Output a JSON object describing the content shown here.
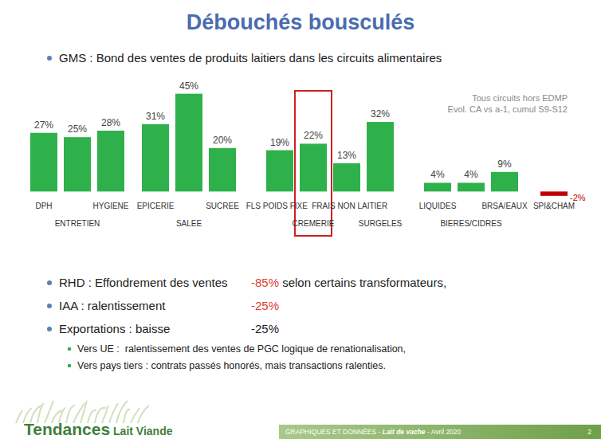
{
  "slide": {
    "title": "Débouchés bousculés",
    "bullets": [
      {
        "text": "RHD : Effondrement des ventes",
        "figure": "-85%",
        "figure_color": "#e03c31",
        "rest": " selon certains transformateurs,"
      },
      {
        "text": "IAA : ralentissement",
        "figure": "-25%",
        "figure_color": "#e03c31"
      },
      {
        "text": "Exportations : baisse",
        "figure": "-25%",
        "figure_color": "#222222"
      }
    ],
    "sub_bullets": [
      "Vers UE :  ralentissement des ventes de PGC logique de renationalisation,",
      "Vers pays tiers : contrats passés honorés, mais transactions ralenties."
    ],
    "footer": {
      "brand": "Tendances",
      "brand_sub": "Lait Viande",
      "source_parts": [
        "GRAPHIQUES ET DONNÉES - ",
        "Lait de vache",
        " - Avril 2020"
      ],
      "page": "2"
    }
  },
  "chart_data": {
    "type": "bar",
    "title": "GMS : Bond des ventes de produits laitiers dans les circuits alimentaires",
    "annotation": [
      "Tous circuits hors EDMP",
      "Evol. CA vs a-1, cumul S9-S12"
    ],
    "categories": [
      "DPH",
      null,
      "HYGIENE",
      "EPICERIE",
      null,
      "SUCREE",
      "FLS POIDS FIXE",
      null,
      "FRAIS NON LAITIER",
      null,
      "LIQUIDES",
      null,
      "BRSA/EAUX",
      "SPI&CHAM"
    ],
    "group_labels": [
      null,
      "ENTRETIEN",
      null,
      null,
      "SALEE",
      null,
      null,
      "CREMERIE",
      null,
      "SURGELES",
      null,
      "BIERES/CIDRES",
      null,
      null
    ],
    "values": [
      27,
      25,
      28,
      31,
      45,
      20,
      19,
      22,
      13,
      32,
      4,
      4,
      9,
      -2
    ],
    "value_labels": [
      "27%",
      "25%",
      "28%",
      "31%",
      "45%",
      "20%",
      "19%",
      "22%",
      "13%",
      "32%",
      "4%",
      "4%",
      "9%",
      "-2%"
    ],
    "colors": [
      "#2eb14a",
      "#2eb14a",
      "#2eb14a",
      "#2eb14a",
      "#2eb14a",
      "#2eb14a",
      "#2eb14a",
      "#2eb14a",
      "#2eb14a",
      "#2eb14a",
      "#2eb14a",
      "#2eb14a",
      "#2eb14a",
      "#c00000"
    ],
    "ylim": [
      -5,
      50
    ],
    "grid": false,
    "data_labels": true,
    "tick_labels": false
  }
}
